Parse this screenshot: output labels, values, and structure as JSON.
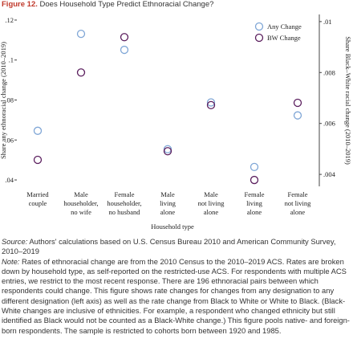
{
  "chart_data": {
    "type": "scatter",
    "figure_label": "Figure 12.",
    "title": "Does Household Type Predict Ethnoracial Change?",
    "categories": [
      [
        "Married",
        "couple"
      ],
      [
        "Male",
        "householder,",
        "no wife"
      ],
      [
        "Female",
        "householder,",
        "no husband"
      ],
      [
        "Male",
        "living",
        "alone"
      ],
      [
        "Male",
        "not living",
        "alone"
      ],
      [
        "Female",
        "living",
        "alone"
      ],
      [
        "Female",
        "not living",
        "alone"
      ]
    ],
    "x_label": "Household type",
    "y_label": "Share any ethnoracial change (2010–2019)",
    "y2_label": "Share Black–White racial change (2010–2019)",
    "series": [
      {
        "name": "Any Change",
        "color": "#7fa6d6",
        "values": [
          0.0646,
          0.1131,
          0.1051,
          0.0554,
          0.0788,
          0.0465,
          0.0723
        ]
      },
      {
        "name": "BW Change",
        "color": "#5b1f5e",
        "axis": "y2",
        "values": [
          0.00457,
          0.008,
          0.00939,
          0.00491,
          0.00672,
          0.00378,
          0.00681
        ]
      }
    ],
    "ylim": [
      0.0368,
      0.1228
    ],
    "yticks": [
      {
        "value": 0.04,
        "label": ".04"
      },
      {
        "value": 0.06,
        "label": ".06"
      },
      {
        "value": 0.08,
        "label": ".08"
      },
      {
        "value": 0.1,
        "label": ".1"
      },
      {
        "value": 0.12,
        "label": ".12"
      }
    ],
    "y2lim": [
      0.00353,
      0.01028
    ],
    "y2ticks": [
      {
        "value": 0.004,
        "label": ".004"
      },
      {
        "value": 0.006,
        "label": ".006"
      },
      {
        "value": 0.008,
        "label": ".008"
      },
      {
        "value": 0.01,
        "label": ".01"
      }
    ],
    "legend": "top-right",
    "source_label": "Source:",
    "source": "Authors' calculations based on U.S. Census Bureau 2010 and American Community Survey, 2010–2019",
    "note_label": "Note:",
    "note": "Rates of ethnoracial change are from the 2010 Census to the 2010–2019 ACS. Rates are broken down by household type, as self-reported on the restricted-use ACS. For respondents with multiple ACS entries, we restrict to the most recent response. There are 196 ethnoracial pairs between which respondents could change. This figure shows rate changes for changes from any designation to any different designation (left axis) as well as the rate change from Black to White or White to Black. (Black-White changes are inclusive of ethnicities. For example, a respondent who changed ethnicity but still identified as Black would not be counted as a Black-White change.) This figure pools native- and foreign-born respondents. The sample is restricted to cohorts born between 1920 and 1985."
  }
}
